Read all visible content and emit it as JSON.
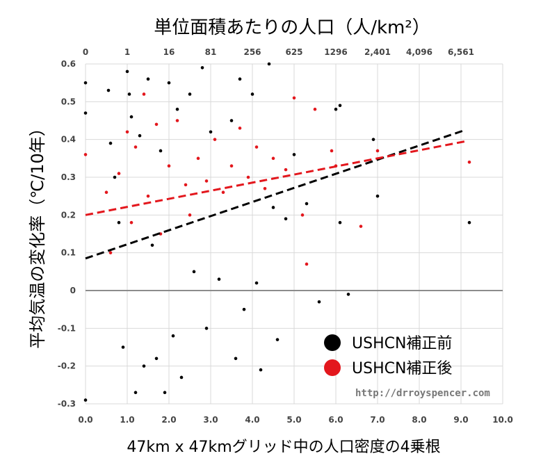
{
  "chart_data": {
    "type": "scatter",
    "title": "単位面積あたりの人口（人/km²）",
    "xlabel": "47km x 47kmグリッド中の人口密度の4乗根",
    "ylabel": "平均気温の変化率（℃/10年）",
    "xlim": [
      0,
      10
    ],
    "ylim": [
      -0.3,
      0.6
    ],
    "x_ticks": [
      "0.0",
      "1.0",
      "2.0",
      "3.0",
      "4.0",
      "5.0",
      "6.0",
      "7.0",
      "8.0",
      "9.0",
      "10.0"
    ],
    "y_ticks": [
      "-0.3",
      "-0.2",
      "-0.1",
      "0",
      "0.1",
      "0.2",
      "0.3",
      "0.4",
      "0.5",
      "0.6"
    ],
    "top_axis_ticks": [
      {
        "x": 0,
        "label": "0"
      },
      {
        "x": 1,
        "label": "1"
      },
      {
        "x": 2,
        "label": "16"
      },
      {
        "x": 3,
        "label": "81"
      },
      {
        "x": 4,
        "label": "256"
      },
      {
        "x": 5,
        "label": "625"
      },
      {
        "x": 6,
        "label": "1296"
      },
      {
        "x": 7,
        "label": "2,401"
      },
      {
        "x": 8,
        "label": "4,096"
      },
      {
        "x": 9,
        "label": "6,561"
      }
    ],
    "grid": true,
    "legend_position": "bottom-right",
    "series": [
      {
        "name": "USHCN補正前",
        "color": "#000000",
        "trend": {
          "x": [
            0.0,
            9.1
          ],
          "y": [
            0.085,
            0.425
          ]
        },
        "points": [
          [
            0.0,
            0.55
          ],
          [
            0.0,
            0.47
          ],
          [
            0.0,
            -0.29
          ],
          [
            0.55,
            0.53
          ],
          [
            0.6,
            0.39
          ],
          [
            0.7,
            0.3
          ],
          [
            0.8,
            0.18
          ],
          [
            0.9,
            -0.15
          ],
          [
            1.0,
            0.58
          ],
          [
            1.05,
            0.52
          ],
          [
            1.1,
            0.46
          ],
          [
            1.2,
            -0.27
          ],
          [
            1.3,
            0.41
          ],
          [
            1.4,
            -0.2
          ],
          [
            1.5,
            0.56
          ],
          [
            1.6,
            0.12
          ],
          [
            1.7,
            -0.18
          ],
          [
            1.8,
            0.37
          ],
          [
            1.9,
            -0.27
          ],
          [
            2.0,
            0.55
          ],
          [
            2.1,
            -0.12
          ],
          [
            2.2,
            0.48
          ],
          [
            2.3,
            -0.23
          ],
          [
            2.5,
            0.52
          ],
          [
            2.6,
            0.05
          ],
          [
            2.8,
            0.59
          ],
          [
            2.9,
            -0.1
          ],
          [
            3.0,
            0.42
          ],
          [
            3.2,
            0.03
          ],
          [
            3.5,
            0.45
          ],
          [
            3.6,
            -0.18
          ],
          [
            3.7,
            0.56
          ],
          [
            3.8,
            -0.05
          ],
          [
            4.0,
            0.52
          ],
          [
            4.1,
            0.02
          ],
          [
            4.2,
            -0.21
          ],
          [
            4.4,
            0.6
          ],
          [
            4.5,
            0.22
          ],
          [
            4.6,
            -0.13
          ],
          [
            4.8,
            0.19
          ],
          [
            5.0,
            0.36
          ],
          [
            5.3,
            0.23
          ],
          [
            5.6,
            -0.03
          ],
          [
            6.0,
            0.48
          ],
          [
            6.1,
            0.49
          ],
          [
            6.1,
            0.18
          ],
          [
            6.3,
            -0.01
          ],
          [
            6.9,
            0.4
          ],
          [
            7.0,
            0.25
          ],
          [
            9.2,
            0.18
          ]
        ]
      },
      {
        "name": "USHCN補正後",
        "color": "#e3171d",
        "trend": {
          "x": [
            0.0,
            9.1
          ],
          "y": [
            0.2,
            0.395
          ]
        },
        "points": [
          [
            0.0,
            0.36
          ],
          [
            0.5,
            0.26
          ],
          [
            0.6,
            0.1
          ],
          [
            0.8,
            0.31
          ],
          [
            1.0,
            0.42
          ],
          [
            1.1,
            0.18
          ],
          [
            1.2,
            0.38
          ],
          [
            1.4,
            0.52
          ],
          [
            1.5,
            0.25
          ],
          [
            1.7,
            0.44
          ],
          [
            1.8,
            0.15
          ],
          [
            2.0,
            0.33
          ],
          [
            2.2,
            0.45
          ],
          [
            2.4,
            0.28
          ],
          [
            2.5,
            0.2
          ],
          [
            2.7,
            0.35
          ],
          [
            2.9,
            0.29
          ],
          [
            3.1,
            0.4
          ],
          [
            3.3,
            0.26
          ],
          [
            3.5,
            0.33
          ],
          [
            3.7,
            0.43
          ],
          [
            3.9,
            0.3
          ],
          [
            4.1,
            0.38
          ],
          [
            4.3,
            0.27
          ],
          [
            4.5,
            0.35
          ],
          [
            4.8,
            0.32
          ],
          [
            5.0,
            0.51
          ],
          [
            5.2,
            0.2
          ],
          [
            5.3,
            0.07
          ],
          [
            5.5,
            0.48
          ],
          [
            5.9,
            0.37
          ],
          [
            6.0,
            0.33
          ],
          [
            6.6,
            0.17
          ],
          [
            7.0,
            0.37
          ],
          [
            9.2,
            0.34
          ]
        ]
      }
    ],
    "watermark": "http://drroyspencer.com"
  }
}
